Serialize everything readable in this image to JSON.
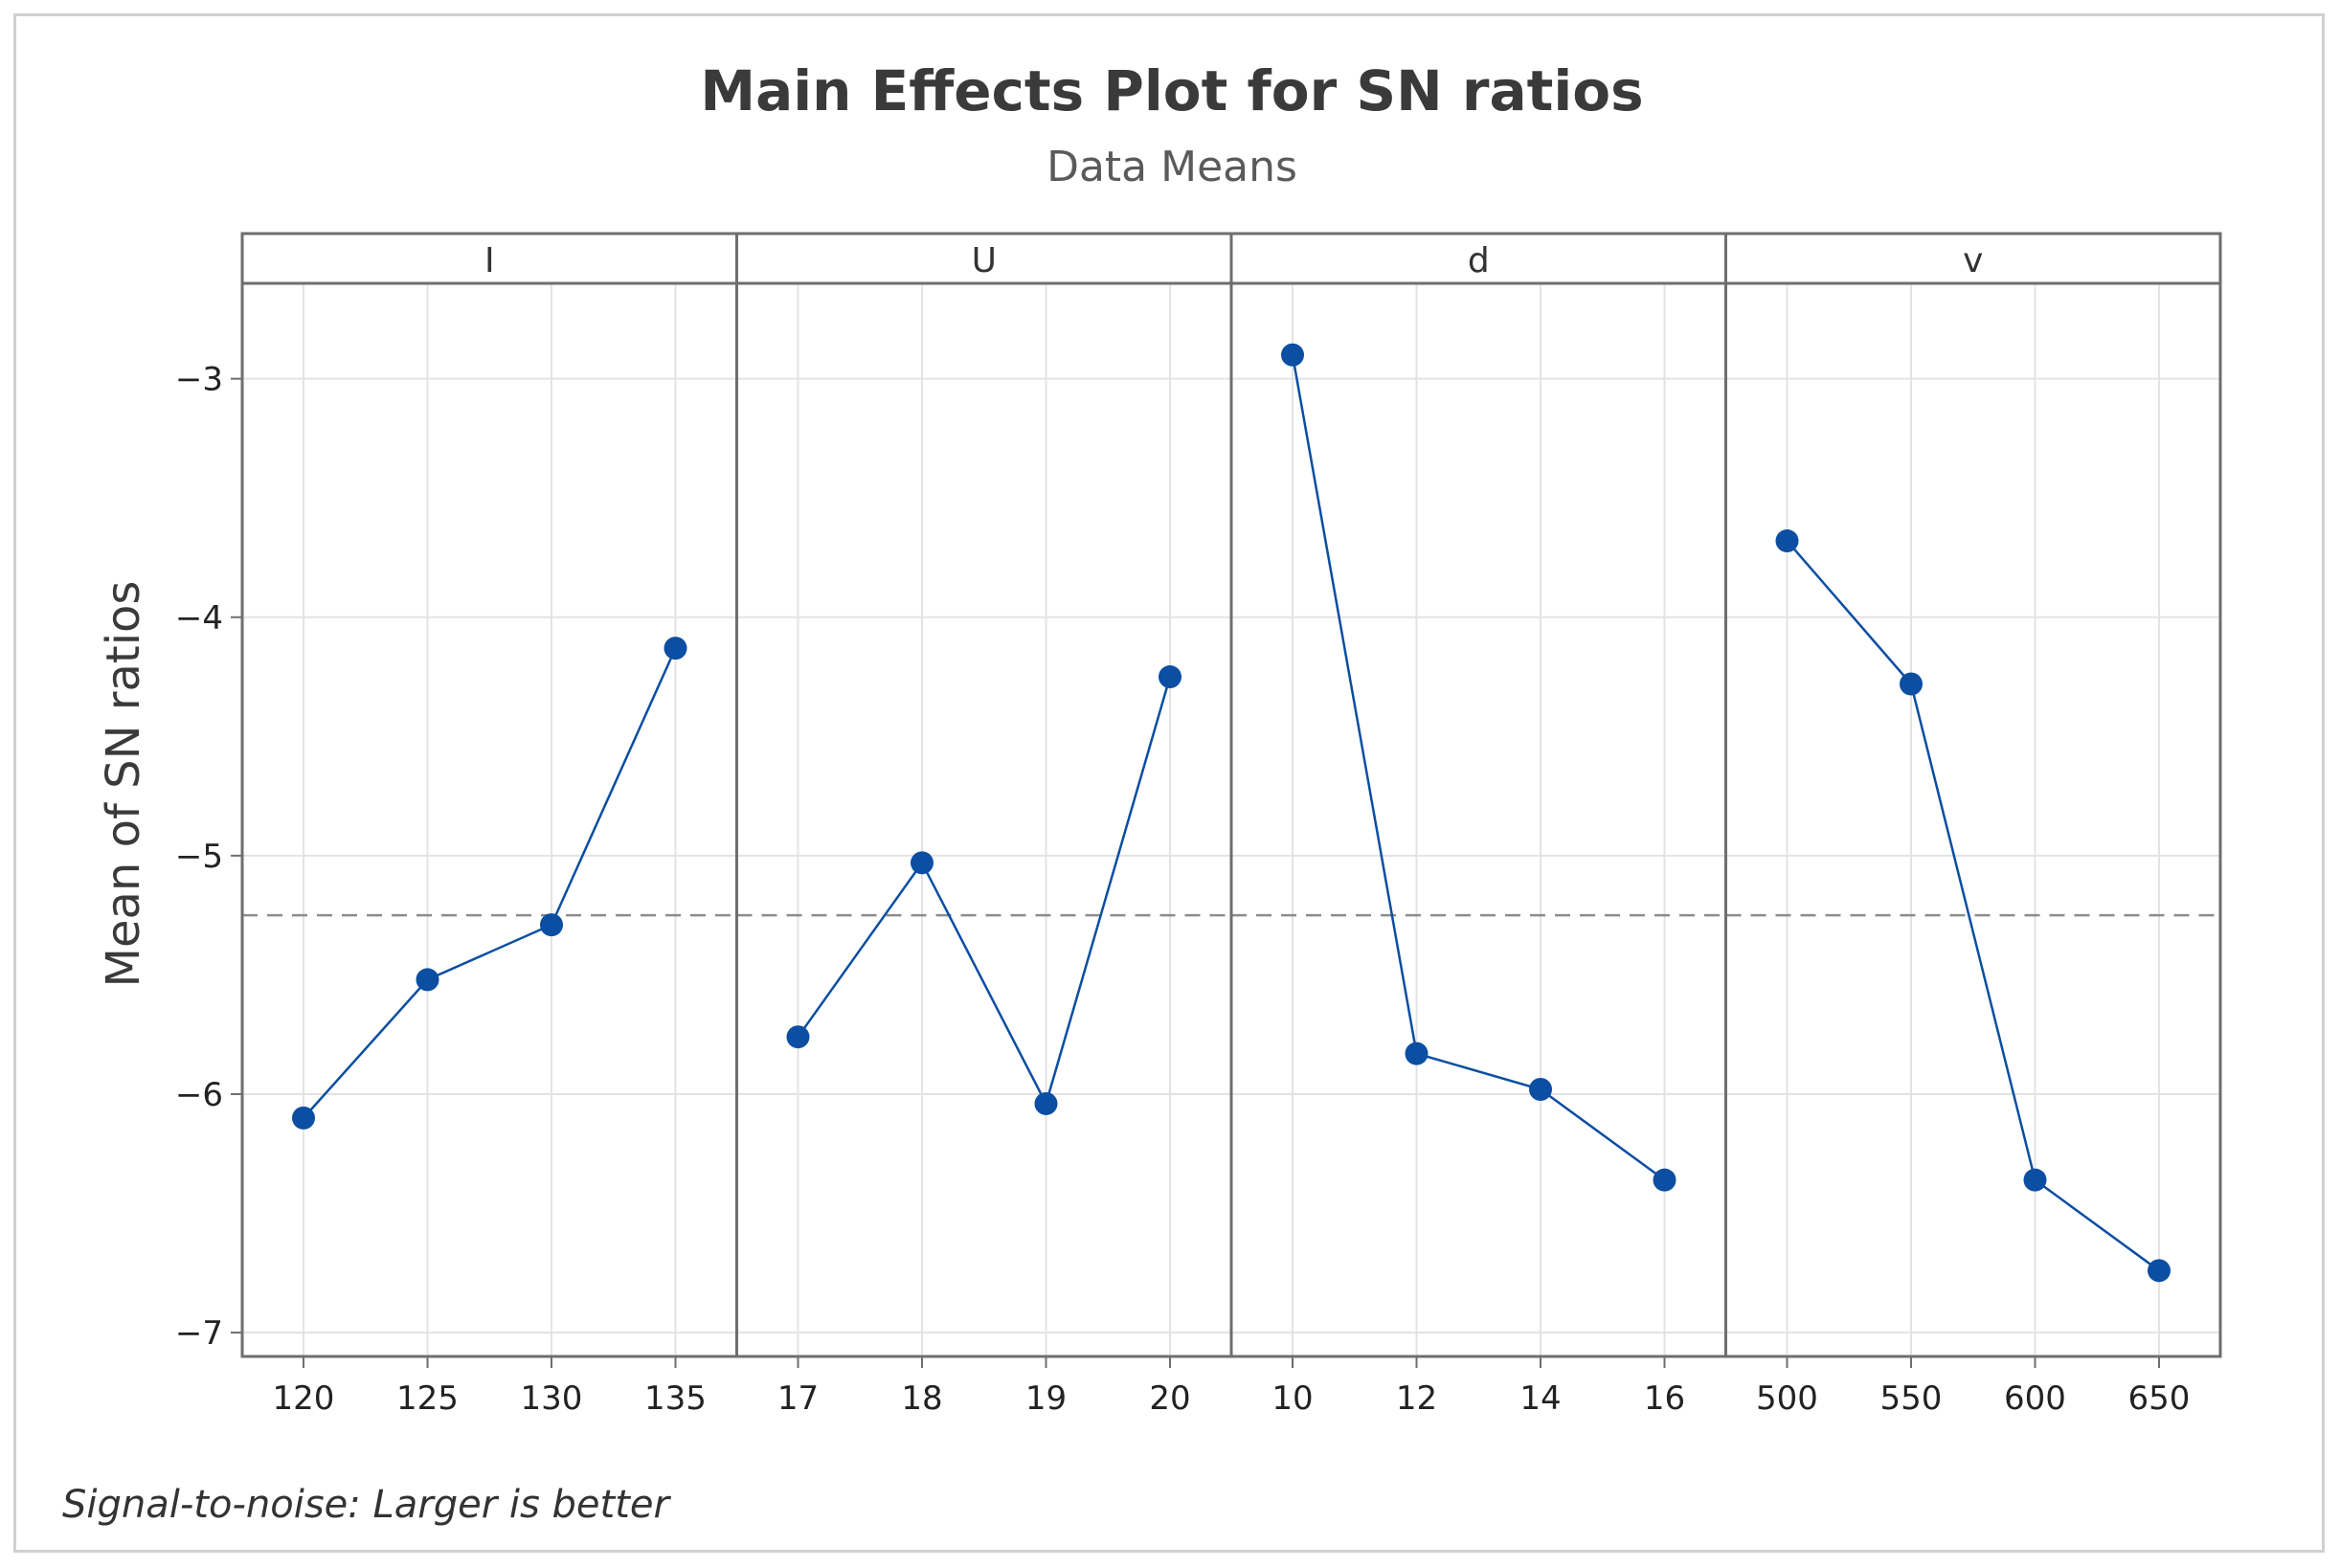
{
  "chart_data": {
    "type": "line",
    "title": "Main Effects Plot for SN ratios",
    "subtitle": "Data Means",
    "ylabel": "Mean of SN ratios",
    "ylim": [
      -7.1,
      -2.6
    ],
    "yticks": [
      -7,
      -6,
      -5,
      -4,
      -3
    ],
    "ytick_labels": [
      "−7",
      "−6",
      "−5",
      "−4",
      "−3"
    ],
    "reference_line": -5.25,
    "grid": true,
    "footnote": "Signal-to-noise: Larger is better",
    "colors": {
      "series": "#0b4ea2",
      "grid": "#e3e3e3",
      "frame": "#6e6e6e",
      "reference": "#8c8c8c"
    },
    "panels": [
      {
        "factor": "I",
        "levels": [
          "120",
          "125",
          "130",
          "135"
        ],
        "values": [
          -6.1,
          -5.52,
          -5.29,
          -4.13
        ]
      },
      {
        "factor": "U",
        "levels": [
          "17",
          "18",
          "19",
          "20"
        ],
        "values": [
          -5.76,
          -5.03,
          -6.04,
          -4.25
        ]
      },
      {
        "factor": "d",
        "levels": [
          "10",
          "12",
          "14",
          "16"
        ],
        "values": [
          -2.9,
          -5.83,
          -5.98,
          -6.36
        ]
      },
      {
        "factor": "v",
        "levels": [
          "500",
          "550",
          "600",
          "650"
        ],
        "values": [
          -3.68,
          -4.28,
          -6.36,
          -6.74
        ]
      }
    ]
  }
}
